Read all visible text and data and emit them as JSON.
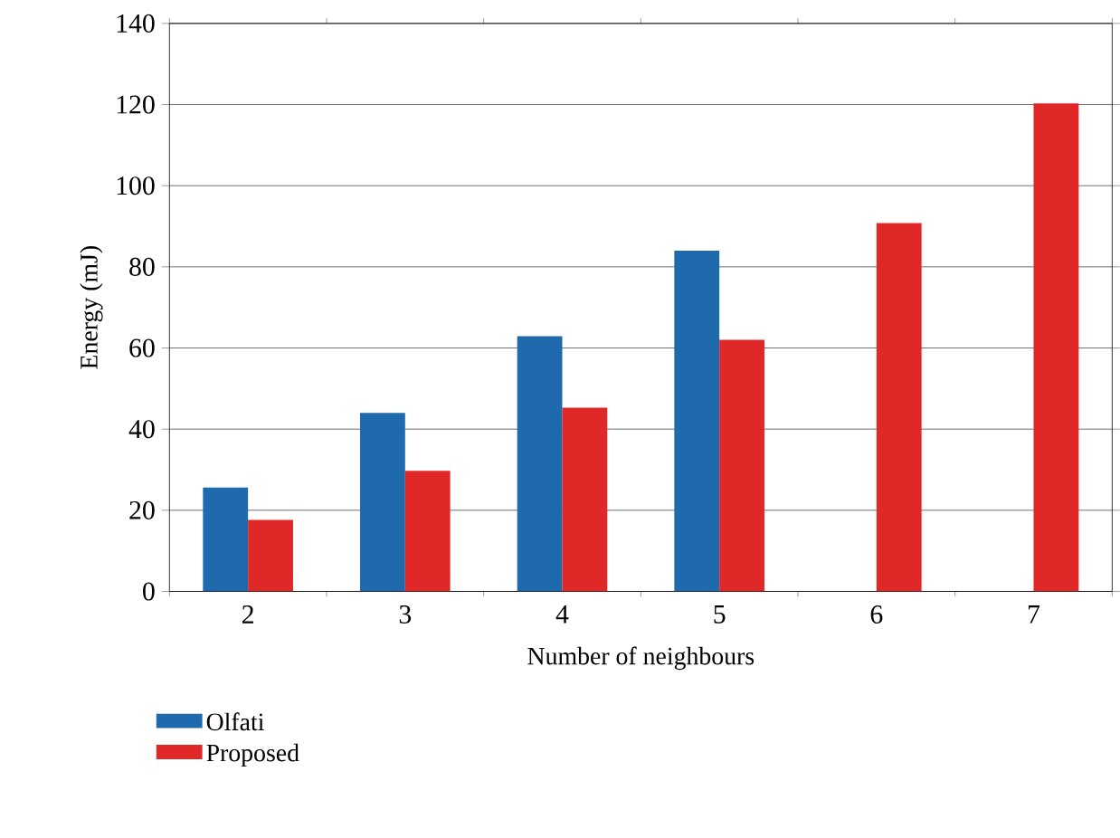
{
  "chart_data": {
    "type": "bar",
    "xlabel": "Number of neighbours",
    "ylabel": "Energy (mJ)",
    "categories": [
      "2",
      "3",
      "4",
      "5",
      "6",
      "7"
    ],
    "series": [
      {
        "name": "Olfati",
        "color": "#1f6aad",
        "values": [
          25.6,
          44,
          62.9,
          84,
          null,
          null
        ]
      },
      {
        "name": "Proposed",
        "color": "#e02828",
        "values": [
          17.6,
          29.7,
          45.3,
          62,
          90.8,
          120.3
        ]
      }
    ],
    "ylim": [
      0,
      140
    ],
    "yticks": [
      0,
      20,
      40,
      60,
      80,
      100,
      120,
      140
    ],
    "grid": "y",
    "legend": "bottom left"
  }
}
